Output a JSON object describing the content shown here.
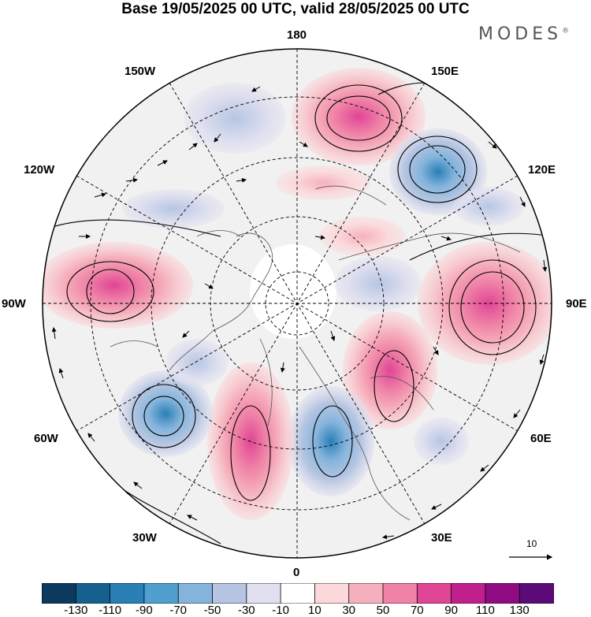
{
  "title": "Base 19/05/2025 00 UTC, valid 28/05/2025 00 UTC",
  "brand": "MODES",
  "brand_mark": "®",
  "longitude_labels": {
    "lon_180": "180",
    "lon_150e": "150E",
    "lon_120e": "120E",
    "lon_90e": "90E",
    "lon_60e": "60E",
    "lon_30e": "30E",
    "lon_0": "0",
    "lon_30w": "30W",
    "lon_60w": "60W",
    "lon_90w": "90W",
    "lon_120w": "120W",
    "lon_150w": "150W"
  },
  "reference_vector": "10",
  "colorbar": {
    "colors": [
      "#0b3a5e",
      "#15608e",
      "#2a7fb6",
      "#4f9fcf",
      "#84b4dc",
      "#b6c6e2",
      "#e0e0f0",
      "#ffffff",
      "#fbd9db",
      "#f6b0bd",
      "#ef82a6",
      "#e04596",
      "#c01f8c",
      "#8f0c82",
      "#5c0a78"
    ],
    "ticks": [
      "-130",
      "-110",
      "-90",
      "-70",
      "-50",
      "-30",
      "-10",
      "10",
      "30",
      "50",
      "70",
      "90",
      "110",
      "130"
    ]
  },
  "anomaly_centers": [
    {
      "name": "high-near-150e",
      "sign": "positive",
      "level": 90
    },
    {
      "name": "low-near-120e",
      "sign": "negative",
      "level": -70
    },
    {
      "name": "high-near-90e",
      "sign": "positive",
      "level": 70
    },
    {
      "name": "high-near-90w",
      "sign": "positive",
      "level": 70
    },
    {
      "name": "low-near-60w",
      "sign": "negative",
      "level": -90
    },
    {
      "name": "high-near-30w",
      "sign": "positive",
      "level": 70
    },
    {
      "name": "low-near-20e",
      "sign": "negative",
      "level": -70
    },
    {
      "name": "high-near-45e",
      "sign": "positive",
      "level": 50
    }
  ]
}
